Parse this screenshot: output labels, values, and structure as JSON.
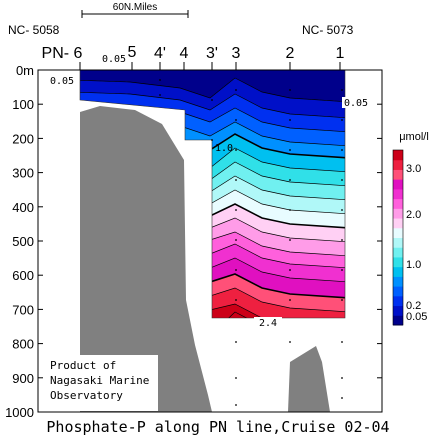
{
  "chart_data": {
    "type": "heatmap",
    "title": "Phosphate-P along PN line,Cruise 02-04",
    "scale_bar_label": "60N.Miles",
    "end_station_labels": {
      "left": "NC- 5058",
      "right": "NC- 5073"
    },
    "stations": [
      "PN- 6",
      "5",
      "4'",
      "4",
      "3'",
      "3",
      "2",
      "1"
    ],
    "yaxis": {
      "ticks": [
        "0m",
        "100",
        "200",
        "300",
        "400",
        "500",
        "600",
        "700",
        "800",
        "900",
        "1000"
      ],
      "ylim": [
        0,
        1000
      ],
      "inverted": true
    },
    "colorbar": {
      "unit_label": "μmol/l",
      "tick_labels": [
        "3.0",
        "2.0",
        "1.0",
        "0.2",
        "0.05"
      ],
      "levels": [
        0.05,
        0.1,
        0.2,
        0.4,
        0.6,
        0.8,
        1.0,
        1.2,
        1.4,
        1.6,
        1.8,
        2.0,
        2.2,
        2.4,
        2.6,
        2.8,
        3.0,
        3.2
      ],
      "colors": [
        "#00008b",
        "#0010c8",
        "#0030f0",
        "#0060ff",
        "#0090ff",
        "#00c0f0",
        "#30e0e8",
        "#70f0f0",
        "#b0f8f8",
        "#e8fcff",
        "#ffd0f4",
        "#ff9ce8",
        "#ff60dc",
        "#f030d0",
        "#e010c0",
        "#ff5078",
        "#ee2040",
        "#cc0018"
      ]
    },
    "contour_labels": [
      "0.05",
      "0.05",
      "0.05",
      "1.0",
      "2.4"
    ],
    "credit_lines": [
      "Product of",
      "Nagasaki Marine",
      "Observatory"
    ]
  }
}
